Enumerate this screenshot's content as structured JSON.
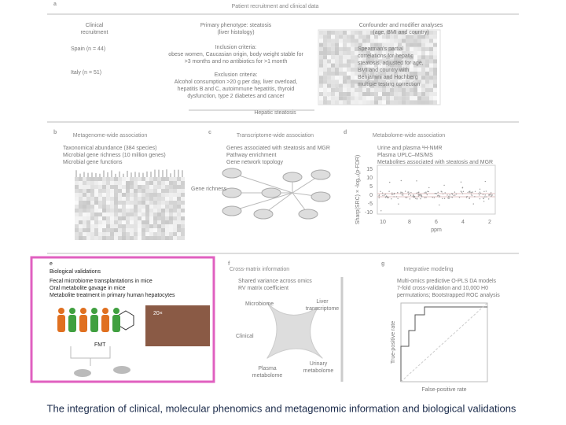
{
  "panels": {
    "a": {
      "label": "a",
      "title": "Patient recruitment and clinical data",
      "recruitment": [
        "Clinical",
        "recruitment"
      ],
      "spain": "Spain (n = 44)",
      "italy": "Italy (n = 51)",
      "phenotype": [
        "Primary phenotype: steatosis",
        "(liver histology)"
      ],
      "inclusion": [
        "Inclusion criteria:",
        "obese women, Caucasian origin, body weight stable for",
        ">3 months and no antibiotics for >1 month"
      ],
      "exclusion": [
        "Exclusion criteria:",
        "Alcohol consumption >20 g per day, liver overload,",
        "hepatitis B and C, autoimmune hepatitis, thyroid",
        "dysfunction, type 2 diabetes and cancer"
      ],
      "confounder": [
        "Confounder and modifier analyses",
        "(age, BMI and country)"
      ],
      "spearman": [
        "Spearman's partial",
        "correlations for hepatic",
        "steatosis, adjusted for age,",
        "BMI and country with",
        "Benjamini and Hochberg",
        "multiple testing correction"
      ],
      "steatosis": "Hepatic steatosis"
    },
    "b": {
      "label": "b",
      "title": "Metagenome-wide association",
      "lines": [
        "Taxonomical abundance (384 species)",
        "Microbial gene richness (10 million genes)",
        "Microbial gene functions"
      ]
    },
    "c": {
      "label": "c",
      "title": "Transcriptome-wide association",
      "lines": [
        "Genes associated with steatosis and MGR",
        "Pathway enrichment",
        "Gene network topology"
      ],
      "richness": "Gene richness"
    },
    "d": {
      "label": "d",
      "title": "Metabolome-wide association",
      "lines": [
        "Urine and plasma ¹H-NMR",
        "Plasma UPLC–MS/MS",
        "Metabolites associated with steatosis and MGR"
      ],
      "ylabel": "Sharp(SRC) × -log₁₀(p-FDR)",
      "yticks": [
        "15",
        "10",
        "5",
        "0",
        "-5",
        "-10"
      ],
      "xticks": [
        "10",
        "8",
        "6",
        "4",
        "2"
      ],
      "xlabel": "ppm"
    },
    "e": {
      "label": "e",
      "title": "Biological validations",
      "lines": [
        "Fecal microbiome transplantations in mice",
        "Oral metabolite gavage in mice",
        "Metabolite treatment in primary human hepatocytes"
      ],
      "fmt": "FMT",
      "zoom": "20×"
    },
    "f": {
      "label": "f",
      "title": "Cross-matrix information",
      "lines": [
        "Shared variance across omics",
        "RV matrix coefficient"
      ],
      "nodes": [
        "Microbiome",
        "Liver",
        "transcriptome",
        "Clinical",
        "Plasma",
        "metabolome",
        "Urinary",
        "metabolome"
      ]
    },
    "g": {
      "label": "g",
      "title": "Integrative modeling",
      "lines": [
        "Multi-omics predictive O-PLS DA models",
        "7-fold cross-validation and 10,000 H0",
        "permutations; Bootstrapped ROC analysis"
      ],
      "ylabel": "True-positive rate",
      "xlabel": "False-positive rate"
    }
  },
  "caption": "The integration of clinical, molecular phenomics and metagenomic information and biological validations"
}
